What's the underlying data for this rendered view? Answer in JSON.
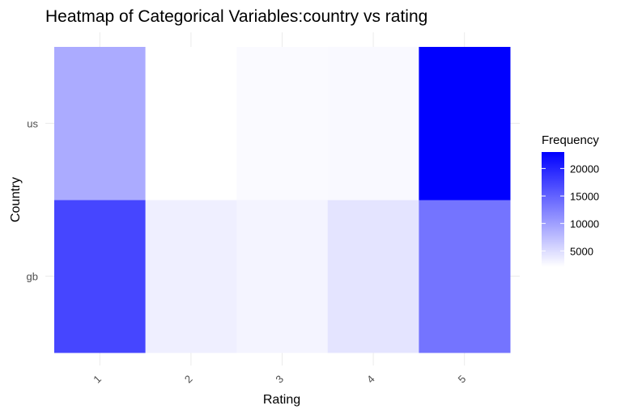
{
  "chart_data": {
    "type": "heatmap",
    "title": "Heatmap of Categorical Variables:country vs rating",
    "xlabel": "Rating",
    "ylabel": "Country",
    "x_categories": [
      "1",
      "2",
      "3",
      "4",
      "5"
    ],
    "y_categories": [
      "gb",
      "us"
    ],
    "values": {
      "us": [
        9000,
        2100,
        2500,
        2600,
        23000
      ],
      "gb": [
        17300,
        3400,
        3000,
        4300,
        13500
      ]
    },
    "legend": {
      "title": "Frequency",
      "ticks": [
        5000,
        10000,
        15000,
        20000
      ],
      "min": 2100,
      "max": 23000,
      "low_color": "#ffffff",
      "high_color": "#0000ff"
    },
    "grid": true,
    "legend_position": "right"
  }
}
